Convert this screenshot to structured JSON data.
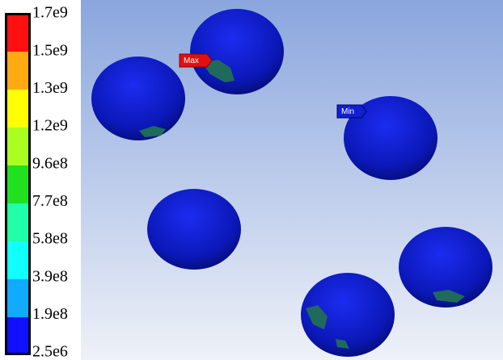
{
  "legend": {
    "labels": [
      "1.7e9",
      "1.5e9",
      "1.3e9",
      "1.2e9",
      "9.6e8",
      "7.7e8",
      "5.8e8",
      "3.9e8",
      "1.9e8",
      "2.5e6"
    ]
  },
  "probes": {
    "max": "Max",
    "min": "Min"
  }
}
